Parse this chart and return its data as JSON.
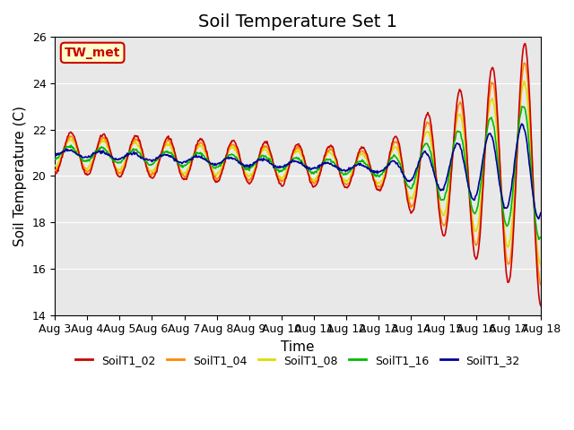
{
  "title": "Soil Temperature Set 1",
  "xlabel": "Time",
  "ylabel": "Soil Temperature (C)",
  "ylim": [
    14,
    26
  ],
  "xlim": [
    0,
    15
  ],
  "xtick_labels": [
    "Aug 3",
    "Aug 4",
    "Aug 5",
    "Aug 6",
    "Aug 7",
    "Aug 8",
    "Aug 9",
    "Aug 10",
    "Aug 11",
    "Aug 12",
    "Aug 13",
    "Aug 14",
    "Aug 15",
    "Aug 16",
    "Aug 17",
    "Aug 18"
  ],
  "annotation_text": "TW_met",
  "annotation_bg": "#ffffcc",
  "annotation_border": "#cc0000",
  "colors": {
    "SoilT1_02": "#cc0000",
    "SoilT1_04": "#ff8800",
    "SoilT1_08": "#dddd00",
    "SoilT1_16": "#00bb00",
    "SoilT1_32": "#000099"
  },
  "legend_labels": [
    "SoilT1_02",
    "SoilT1_04",
    "SoilT1_08",
    "SoilT1_16",
    "SoilT1_32"
  ],
  "plot_bg": "#e8e8e8",
  "fig_bg": "#ffffff",
  "title_fontsize": 14,
  "axis_fontsize": 11,
  "tick_fontsize": 9
}
